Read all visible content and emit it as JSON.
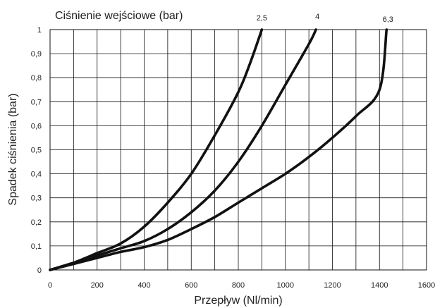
{
  "chart_data": {
    "type": "line",
    "title": "Ciśnienie wejściowe (bar)",
    "xlabel": "Przepływ (Nl/min)",
    "ylabel": "Spadek ciśnienia (bar)",
    "xlim": [
      0,
      1600
    ],
    "ylim": [
      0,
      1
    ],
    "x_ticks": [
      0,
      200,
      400,
      600,
      800,
      1000,
      1200,
      1400,
      1600
    ],
    "x_tick_labels": [
      "0",
      "200",
      "400",
      "600",
      "800",
      "1000",
      "1200",
      "1400",
      "1600"
    ],
    "y_ticks": [
      0,
      0.1,
      0.2,
      0.3,
      0.4,
      0.5,
      0.6,
      0.7,
      0.8,
      0.9,
      1
    ],
    "y_tick_labels": [
      "0",
      "0,1",
      "0,2",
      "0,3",
      "0,4",
      "0,5",
      "0,6",
      "0,7",
      "0,8",
      "0,9",
      "1"
    ],
    "grid": true,
    "line_color": "#111111",
    "series": [
      {
        "name": "2,5",
        "x": [
          0,
          100,
          200,
          300,
          400,
          500,
          600,
          700,
          800,
          850,
          900
        ],
        "y": [
          0,
          0.03,
          0.07,
          0.11,
          0.18,
          0.28,
          0.4,
          0.56,
          0.74,
          0.86,
          1.0
        ]
      },
      {
        "name": "4",
        "x": [
          0,
          100,
          200,
          300,
          400,
          500,
          600,
          700,
          800,
          900,
          1000,
          1100,
          1130
        ],
        "y": [
          0,
          0.03,
          0.06,
          0.09,
          0.12,
          0.17,
          0.24,
          0.33,
          0.45,
          0.6,
          0.77,
          0.94,
          1.0
        ]
      },
      {
        "name": "6,3",
        "x": [
          0,
          100,
          200,
          300,
          400,
          500,
          600,
          700,
          800,
          900,
          1000,
          1100,
          1200,
          1300,
          1400,
          1430
        ],
        "y": [
          0,
          0.025,
          0.05,
          0.075,
          0.095,
          0.125,
          0.17,
          0.22,
          0.28,
          0.34,
          0.4,
          0.47,
          0.55,
          0.64,
          0.75,
          1.0
        ]
      }
    ]
  }
}
